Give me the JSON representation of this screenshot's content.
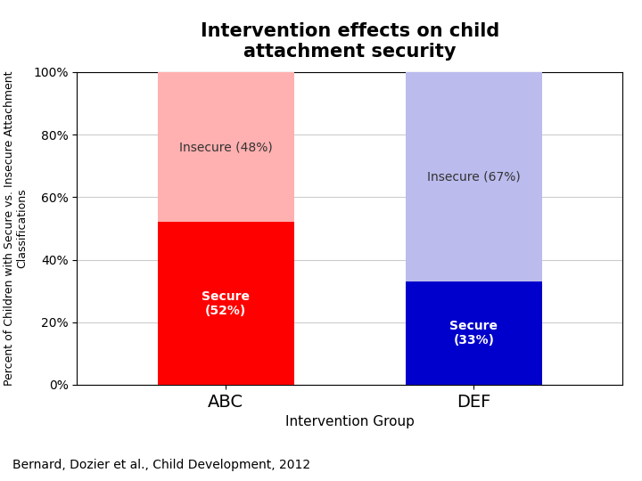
{
  "chart_data": {
    "type": "bar",
    "title": "Intervention effects on child\nattachment security",
    "categories": [
      "ABC",
      "DEF"
    ],
    "series": [
      {
        "name": "Secure",
        "colors": [
          "#FF0000",
          "#0000CC"
        ],
        "values": [
          52,
          33
        ],
        "value_labels": [
          "Secure\n(52%)",
          "Secure\n(33%)"
        ]
      },
      {
        "name": "Insecure",
        "colors": [
          "#FFB0B0",
          "#BBBBEE"
        ],
        "values": [
          48,
          67
        ],
        "value_labels": [
          "Insecure (48%)",
          "Insecure (67%)"
        ]
      }
    ],
    "stacked": true,
    "data_labels": true,
    "x_label": "Intervention Group",
    "y_label": "Percent of Children with Secure vs. Insecure Attachment\nClassifications",
    "ylim": [
      0,
      100
    ],
    "yticks": [
      {
        "value": 0,
        "label": "0%"
      },
      {
        "value": 20,
        "label": "20%"
      },
      {
        "value": 40,
        "label": "40%"
      },
      {
        "value": 60,
        "label": "60%"
      },
      {
        "value": 80,
        "label": "80%"
      },
      {
        "value": 100,
        "label": "100%"
      }
    ],
    "grid": true,
    "annotations": [
      "Bernard, Dozier et al., Child Development, 2012"
    ]
  }
}
